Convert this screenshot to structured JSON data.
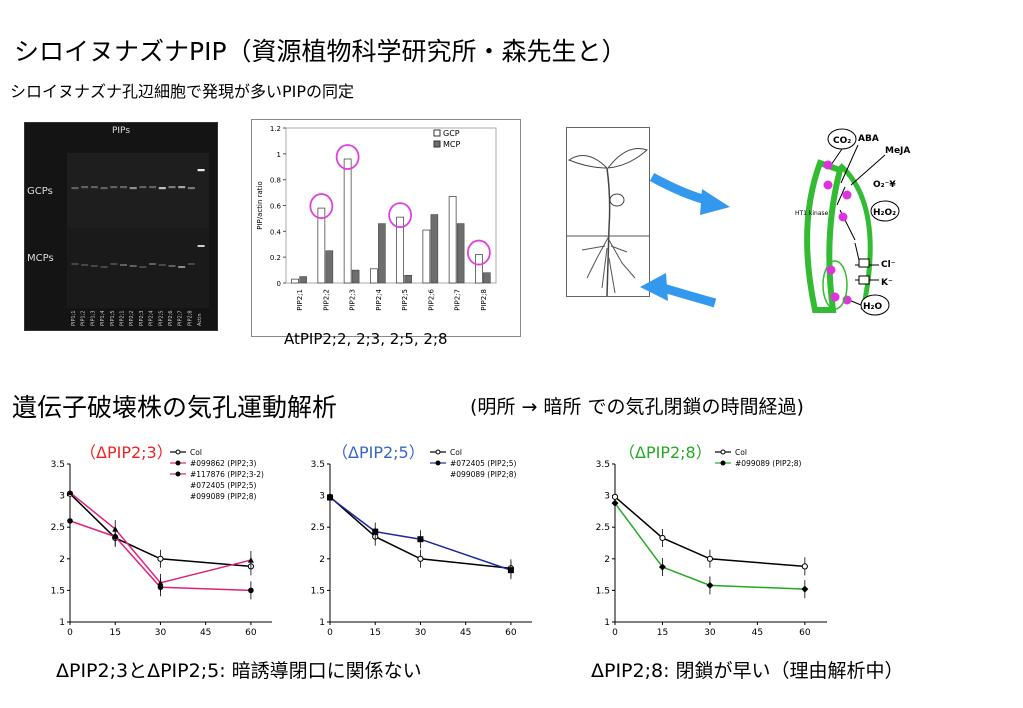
{
  "title": "シロイヌナズナPIP（資源植物科学研究所・森先生と）",
  "subtitle": "シロイヌナズナ孔辺細胞で発現が多いPIPの同定",
  "gel": {
    "title": "PIPs",
    "row1": "GCPs",
    "row2": "MCPs",
    "lanes": [
      "PIP1;1",
      "PIP1;2",
      "PIP1;3",
      "PIP1;4",
      "PIP1;5",
      "PIP2;1",
      "PIP2;2",
      "PIP2;3",
      "PIP2;4",
      "PIP2;5",
      "PIP2;6",
      "PIP2;7",
      "PIP2;8",
      "Actin"
    ]
  },
  "bar_chart_caption": "AtPIP2;2,   2;3,   2;5,   2;8",
  "diagram": {
    "labels": [
      "CO₂",
      "ABA",
      "MeJA",
      "O₂⁻¥",
      "H₂O₂",
      "HT1 kinase",
      "Cl⁻",
      "K⁻",
      "H₂O"
    ]
  },
  "section2": {
    "title": "遺伝子破壊株の気孔運動解析",
    "note": "(明所  →  暗所  での気孔閉鎖の時間経過)"
  },
  "bottom_left_text": "ΔPIP2;3とΔPIP2;5:  暗誘導閉口に関係ない",
  "bottom_right_text": "ΔPIP2;8:  閉鎖が早い（理由解析中）",
  "colors": {
    "highlight_circle": "#e040e0",
    "arrow": "#3399ee",
    "cell_green": "#33bb33",
    "gcp_bar": "#ffffff",
    "mcp_bar": "#6e6e6e",
    "pip23_line": "#e0207a",
    "pip25_line": "#1a2a9a",
    "pip28_line": "#22aa22",
    "label_red": "#ee2222",
    "label_blue": "#3366cc",
    "label_green": "#22aa22"
  },
  "chart_data": [
    {
      "type": "bar",
      "ylabel": "PIP/actin ratio",
      "ylim": [
        0,
        1.2
      ],
      "yticks": [
        "0",
        "0.2",
        "0.4",
        "0.6",
        "0.8",
        "1",
        "1.2"
      ],
      "categories": [
        "PIP2;1",
        "PIP2;2",
        "PIP2;3",
        "PIP2;4",
        "PIP2;5",
        "PIP2;6",
        "PIP2;7",
        "PIP2;8"
      ],
      "series": [
        {
          "name": "GCP",
          "values": [
            0.03,
            0.58,
            0.96,
            0.11,
            0.51,
            0.41,
            0.67,
            0.22
          ]
        },
        {
          "name": "MCP",
          "values": [
            0.05,
            0.25,
            0.1,
            0.46,
            0.06,
            0.53,
            0.46,
            0.08
          ]
        }
      ],
      "highlighted": [
        "PIP2;2",
        "PIP2;3",
        "PIP2;5",
        "PIP2;8"
      ],
      "legend": "top-right"
    },
    {
      "type": "line",
      "title": "（ΔPIP2;3）",
      "x": [
        0,
        15,
        30,
        60
      ],
      "xticks": [
        "0",
        "15",
        "30",
        "45",
        "60"
      ],
      "ylim": [
        1,
        3.5
      ],
      "yticks": [
        "1",
        "1.5",
        "2",
        "2.5",
        "3",
        "3.5"
      ],
      "legend": [
        "Col",
        "#099862 (PIP2;3)",
        "#117876 (PIP2;3-2)",
        "#072405 (PIP2;5)",
        "#099089 (PIP2;8)"
      ],
      "series": [
        {
          "name": "Col",
          "values": [
            3.03,
            2.33,
            2.0,
            1.88
          ]
        },
        {
          "name": "#099862 (PIP2;3)",
          "values": [
            2.6,
            2.35,
            1.55,
            1.5
          ]
        },
        {
          "name": "#117876 (PIP2;3-2)",
          "values": [
            3.05,
            2.47,
            1.62,
            1.98
          ]
        }
      ]
    },
    {
      "type": "line",
      "title": "（ΔPIP2;5）",
      "x": [
        0,
        15,
        30,
        60
      ],
      "xticks": [
        "0",
        "15",
        "30",
        "45",
        "60"
      ],
      "ylim": [
        1,
        3.5
      ],
      "yticks": [
        "1",
        "1.5",
        "2",
        "2.5",
        "3",
        "3.5"
      ],
      "legend": [
        "Col",
        "#072405 (PIP2;5)",
        "#099089 (PIP2;8)"
      ],
      "series": [
        {
          "name": "Col",
          "values": [
            2.98,
            2.35,
            2.0,
            1.85
          ]
        },
        {
          "name": "#072405 (PIP2;5)",
          "values": [
            2.97,
            2.43,
            2.31,
            1.82
          ]
        }
      ]
    },
    {
      "type": "line",
      "title": "（ΔPIP2;8）",
      "x": [
        0,
        15,
        30,
        60
      ],
      "xticks": [
        "0",
        "15",
        "30",
        "45",
        "60"
      ],
      "ylim": [
        1,
        3.5
      ],
      "yticks": [
        "1",
        "1.5",
        "2",
        "2.5",
        "3",
        "3.5"
      ],
      "legend": [
        "Col",
        "#099089 (PIP2;8)"
      ],
      "series": [
        {
          "name": "Col",
          "values": [
            2.98,
            2.33,
            2.0,
            1.88
          ]
        },
        {
          "name": "#099089 (PIP2;8)",
          "values": [
            2.88,
            1.87,
            1.58,
            1.52
          ]
        }
      ]
    }
  ]
}
